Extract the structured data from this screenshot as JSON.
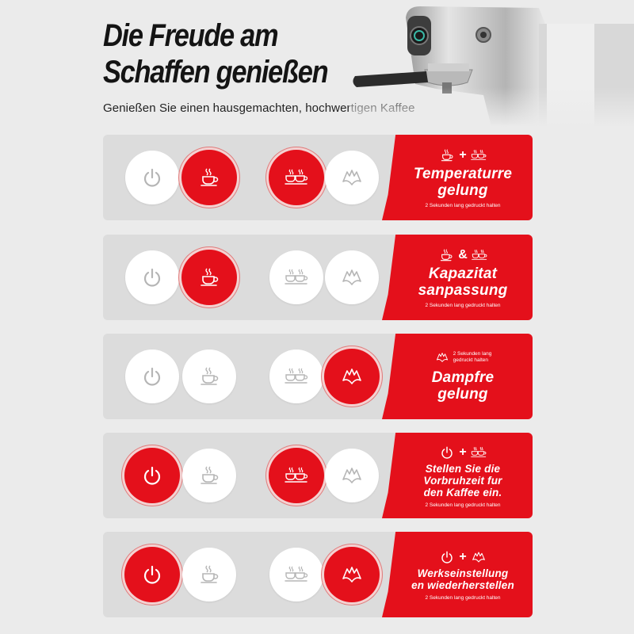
{
  "header": {
    "title_line1": "Die Freude am",
    "title_line2": "Schaffen genießen",
    "subtitle": "Genießen Sie einen hausgemachten, hochwertigen Kaffee"
  },
  "icons": {
    "power": "power-icon",
    "single_cup": "single-cup-icon",
    "double_cup": "double-cup-icon",
    "steam": "steam-icon"
  },
  "colors": {
    "accent": "#e4101b",
    "background": "#ebebeb",
    "row_background": "#dcdcdc",
    "icon_inactive": "#b5b5b5",
    "button": "#ffffff"
  },
  "rows": [
    {
      "active": [
        "double_cup"
      ],
      "active_single": true,
      "combo_left": "single_cup",
      "combo_op": "+",
      "combo_right": "double_cup",
      "title_lines": [
        "Temperaturre",
        "gelung"
      ],
      "note": "2 Sekunden lang gedruckt halten"
    },
    {
      "combo_left": "single_cup",
      "combo_op": "&",
      "combo_right": "double_cup",
      "title_lines": [
        "Kapazitat",
        "sanpassung"
      ],
      "note": "2 Sekunden lang gedruckt halten"
    },
    {
      "combo_icon": "steam",
      "combo_note_line1": "2 Sekunden lang",
      "combo_note_line2": "gedruckt halten",
      "title_lines": [
        "Dampfre",
        "gelung"
      ]
    },
    {
      "combo_left": "power",
      "combo_op": "+",
      "combo_right": "double_cup",
      "title_lines": [
        "Stellen Sie die",
        "Vorbruhzeit fur",
        "den Kaffee ein."
      ],
      "note": "2 Sekunden lang gedruckt halten"
    },
    {
      "combo_left": "power",
      "combo_op": "+",
      "combo_right": "steam",
      "title_lines": [
        "Werkseinstellung",
        "en wiederherstellen"
      ],
      "note": "2 Sekunden lang gedruckt halten"
    }
  ]
}
